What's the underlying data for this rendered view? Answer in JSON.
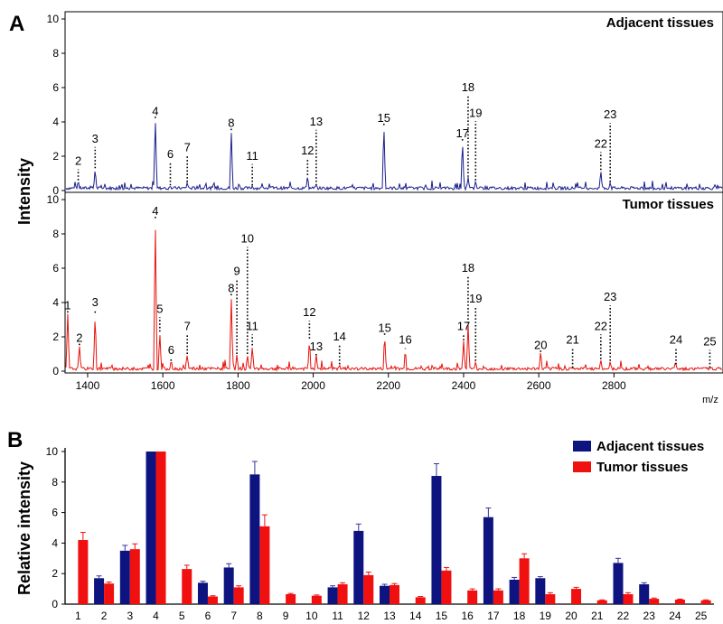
{
  "figure": {
    "panel_a_letter": "A",
    "panel_b_letter": "B"
  },
  "colors": {
    "adjacent": "#1a1f8c",
    "tumor": "#e8120c",
    "bar_adjacent": "#0d1480",
    "bar_tumor": "#f01010",
    "error": "#333399"
  },
  "chart_data": [
    {
      "type": "line",
      "panel": "A",
      "ylabel": "Intensity",
      "xunit": "m/z",
      "xlim": [
        1340,
        3090
      ],
      "ylim": [
        0,
        10
      ],
      "x_ticks": [
        1400,
        1600,
        1800,
        2000,
        2200,
        2400,
        2600,
        2800
      ],
      "y_ticks": [
        0,
        2,
        4,
        6,
        8,
        10
      ],
      "series": [
        {
          "name": "Adjacent tissues",
          "peaks": [
            {
              "label": "2",
              "x": 1375,
              "y": 0.6,
              "label_y": 1.5
            },
            {
              "label": "3",
              "x": 1420,
              "y": 1.3,
              "label_y": 2.8
            },
            {
              "label": "4",
              "x": 1580,
              "y": 4.3,
              "label_y": 4.4
            },
            {
              "label": "6",
              "x": 1620,
              "y": 0.3,
              "label_y": 1.9
            },
            {
              "label": "7",
              "x": 1665,
              "y": 0.5,
              "label_y": 2.3
            },
            {
              "label": "8",
              "x": 1782,
              "y": 3.6,
              "label_y": 3.7
            },
            {
              "label": "11",
              "x": 1838,
              "y": 0.3,
              "label_y": 1.8
            },
            {
              "label": "12",
              "x": 1985,
              "y": 0.9,
              "label_y": 2.1
            },
            {
              "label": "13",
              "x": 2008,
              "y": 0.3,
              "label_y": 3.8
            },
            {
              "label": "15",
              "x": 2188,
              "y": 3.9,
              "label_y": 4.0
            },
            {
              "label": "17",
              "x": 2397,
              "y": 3.0,
              "label_y": 3.1
            },
            {
              "label": "18",
              "x": 2412,
              "y": 0.8,
              "label_y": 5.8
            },
            {
              "label": "19",
              "x": 2432,
              "y": 0.6,
              "label_y": 4.3
            },
            {
              "label": "22",
              "x": 2765,
              "y": 1.2,
              "label_y": 2.5
            },
            {
              "label": "23",
              "x": 2790,
              "y": 0.5,
              "label_y": 4.2
            }
          ]
        },
        {
          "name": "Tumor tissues",
          "peaks": [
            {
              "label": "1",
              "x": 1347,
              "y": 3.5,
              "label_y": 3.6
            },
            {
              "label": "2",
              "x": 1378,
              "y": 1.6,
              "label_y": 1.7
            },
            {
              "label": "3",
              "x": 1420,
              "y": 3.4,
              "label_y": 3.8
            },
            {
              "label": "4",
              "x": 1580,
              "y": 9.0,
              "label_y": 9.1
            },
            {
              "label": "5",
              "x": 1592,
              "y": 2.3,
              "label_y": 3.4
            },
            {
              "label": "6",
              "x": 1622,
              "y": 0.6,
              "label_y": 1.0
            },
            {
              "label": "7",
              "x": 1665,
              "y": 1.0,
              "label_y": 2.4
            },
            {
              "label": "8",
              "x": 1782,
              "y": 4.5,
              "label_y": 4.6
            },
            {
              "label": "9",
              "x": 1797,
              "y": 1.0,
              "label_y": 5.6
            },
            {
              "label": "10",
              "x": 1825,
              "y": 1.0,
              "label_y": 7.5
            },
            {
              "label": "11",
              "x": 1838,
              "y": 1.5,
              "label_y": 2.4
            },
            {
              "label": "12",
              "x": 1990,
              "y": 1.9,
              "label_y": 3.2
            },
            {
              "label": "13",
              "x": 2008,
              "y": 1.0,
              "label_y": 1.2
            },
            {
              "label": "14",
              "x": 2070,
              "y": 0.4,
              "label_y": 1.8
            },
            {
              "label": "15",
              "x": 2190,
              "y": 2.2,
              "label_y": 2.3
            },
            {
              "label": "16",
              "x": 2245,
              "y": 1.3,
              "label_y": 1.6
            },
            {
              "label": "17",
              "x": 2400,
              "y": 1.8,
              "label_y": 2.4
            },
            {
              "label": "18",
              "x": 2412,
              "y": 2.8,
              "label_y": 5.8
            },
            {
              "label": "19",
              "x": 2432,
              "y": 0.6,
              "label_y": 4.0
            },
            {
              "label": "20",
              "x": 2605,
              "y": 1.2,
              "label_y": 1.3
            },
            {
              "label": "21",
              "x": 2690,
              "y": 0.2,
              "label_y": 1.6
            },
            {
              "label": "22",
              "x": 2765,
              "y": 0.7,
              "label_y": 2.4
            },
            {
              "label": "23",
              "x": 2790,
              "y": 0.6,
              "label_y": 4.1
            },
            {
              "label": "24",
              "x": 2965,
              "y": 0.4,
              "label_y": 1.6
            },
            {
              "label": "25",
              "x": 3055,
              "y": 0.2,
              "label_y": 1.5
            }
          ]
        }
      ]
    },
    {
      "type": "bar",
      "panel": "B",
      "ylabel": "Relative intensity",
      "ylim": [
        0,
        10
      ],
      "y_ticks": [
        0,
        2,
        4,
        6,
        8,
        10
      ],
      "categories": [
        "1",
        "2",
        "3",
        "4",
        "5",
        "6",
        "7",
        "8",
        "9",
        "10",
        "11",
        "12",
        "13",
        "14",
        "15",
        "16",
        "17",
        "18",
        "19",
        "20",
        "21",
        "22",
        "23",
        "24",
        "25"
      ],
      "series": [
        {
          "name": "Adjacent tissues",
          "values": [
            0,
            1.7,
            3.5,
            10,
            0,
            1.4,
            2.4,
            8.5,
            0,
            0,
            1.1,
            4.8,
            1.2,
            0,
            8.4,
            0,
            5.7,
            1.6,
            1.7,
            0,
            0,
            2.7,
            1.3,
            0,
            0
          ],
          "errors": [
            0,
            0.15,
            0.35,
            0,
            0,
            0.1,
            0.25,
            0.85,
            0,
            0,
            0.1,
            0.45,
            0.1,
            0,
            0.8,
            0,
            0.6,
            0.15,
            0.1,
            0,
            0,
            0.3,
            0.1,
            0,
            0
          ]
        },
        {
          "name": "Tumor tissues",
          "values": [
            4.2,
            1.35,
            3.6,
            10,
            2.3,
            0.5,
            1.1,
            5.1,
            0.65,
            0.55,
            1.3,
            1.9,
            1.25,
            0.45,
            2.2,
            0.9,
            0.9,
            3.0,
            0.65,
            1.0,
            0.25,
            0.65,
            0.35,
            0.3,
            0.25
          ],
          "errors": [
            0.5,
            0.1,
            0.35,
            0,
            0.25,
            0.05,
            0.1,
            0.75,
            0.05,
            0.05,
            0.1,
            0.2,
            0.1,
            0.05,
            0.2,
            0.1,
            0.1,
            0.3,
            0.1,
            0.1,
            0.03,
            0.1,
            0.05,
            0.03,
            0.03
          ]
        }
      ]
    }
  ]
}
